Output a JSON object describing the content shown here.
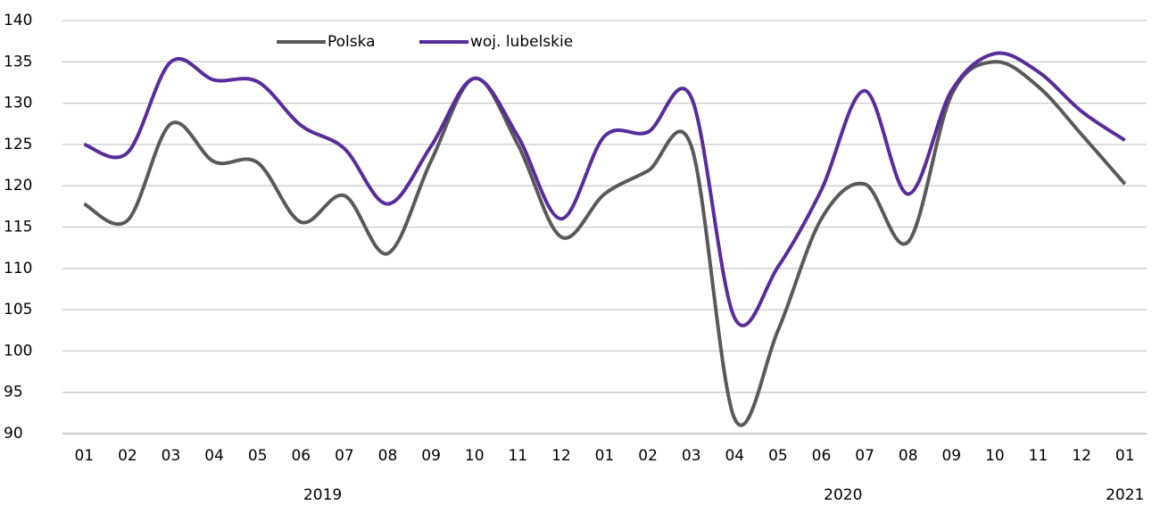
{
  "chart_data": {
    "type": "line",
    "groups": [
      {
        "label": "2019",
        "categories": [
          "01",
          "02",
          "03",
          "04",
          "05",
          "06",
          "07",
          "08",
          "09",
          "10",
          "11",
          "12"
        ]
      },
      {
        "label": "2020",
        "categories": [
          "01",
          "02",
          "03",
          "04",
          "05",
          "06",
          "07",
          "08",
          "09",
          "10",
          "11",
          "12"
        ]
      },
      {
        "label": "2021",
        "categories": [
          "01"
        ]
      }
    ],
    "series": [
      {
        "name": "Polska",
        "color": "#595959",
        "values": [
          117.8,
          115.8,
          127.5,
          122.9,
          122.8,
          115.6,
          118.8,
          111.8,
          123,
          133,
          125,
          113.8,
          119,
          121.8,
          124.8,
          91.8,
          102.5,
          116,
          120.2,
          113.2,
          131,
          135,
          132,
          126.2,
          120.2
        ]
      },
      {
        "name": "woj. lubelskie",
        "color": "#582c9a",
        "values": [
          125,
          124,
          135,
          132.8,
          132.6,
          127.3,
          124.5,
          117.8,
          124.8,
          133,
          126,
          116,
          126,
          126.5,
          130.7,
          104,
          110.2,
          119.5,
          131.5,
          119,
          131.5,
          136,
          133.8,
          129,
          125.5
        ]
      }
    ],
    "ylim": [
      90,
      140
    ],
    "yticks": [
      90,
      95,
      100,
      105,
      110,
      115,
      120,
      125,
      130,
      135,
      140
    ],
    "grid": true,
    "legend": "top"
  }
}
